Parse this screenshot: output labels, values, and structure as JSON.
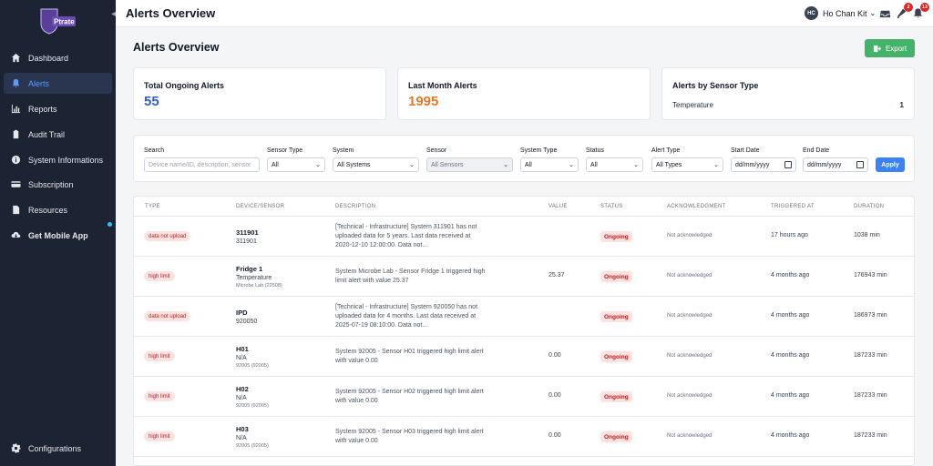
{
  "app": {
    "title": "Alerts Overview",
    "logo_text": "Ptrate"
  },
  "sidebar": {
    "items": [
      {
        "label": "Dashboard",
        "icon": "home-icon"
      },
      {
        "label": "Alerts",
        "icon": "bell-icon"
      },
      {
        "label": "Reports",
        "icon": "chart-icon"
      },
      {
        "label": "Audit Trail",
        "icon": "clipboard-icon"
      },
      {
        "label": "System Informations",
        "icon": "info-icon"
      },
      {
        "label": "Subscription",
        "icon": "card-icon"
      },
      {
        "label": "Resources",
        "icon": "file-icon"
      },
      {
        "label": "Get Mobile App",
        "icon": "cloud-download-icon"
      }
    ],
    "footer_item": {
      "label": "Configurations",
      "icon": "gear-icon"
    },
    "active": "Alerts"
  },
  "header": {
    "title": "Alerts Overview",
    "user": {
      "initials": "HC",
      "name": "Ho Chan Kit"
    },
    "notifications": {
      "messages_icon": "inbox-icon",
      "alerts_count": "2",
      "bell_count": "13"
    }
  },
  "page": {
    "title": "Alerts Overview",
    "export_label": "Export"
  },
  "cards": {
    "total": {
      "label": "Total Ongoing Alerts",
      "value": "55",
      "color": "#2f5fd0"
    },
    "last_month": {
      "label": "Last Month Alerts",
      "value": "1995",
      "color": "#e07a2e"
    },
    "by_sensor": {
      "label": "Alerts by Sensor Type",
      "rows": [
        {
          "name": "Temperature",
          "count": "1"
        }
      ]
    }
  },
  "filters": {
    "search": {
      "label": "Search",
      "placeholder": "Device name/ID, description, sensor"
    },
    "sensor_type": {
      "label": "Sensor Type",
      "value": "All"
    },
    "system": {
      "label": "System",
      "value": "All Systems"
    },
    "sensor": {
      "label": "Sensor",
      "value": "All Sensors"
    },
    "system_type": {
      "label": "System Type",
      "value": "All"
    },
    "status": {
      "label": "Status",
      "value": "All"
    },
    "alert_type": {
      "label": "Alert Type",
      "value": "All Types"
    },
    "start_date": {
      "label": "Start Date",
      "value": "dd/mm/yyyy"
    },
    "end_date": {
      "label": "End Date",
      "value": "dd/mm/yyyy"
    },
    "apply_label": "Apply"
  },
  "table": {
    "columns": [
      "TYPE",
      "DEVICE/SENSOR",
      "DESCRIPTION",
      "VALUE",
      "STATUS",
      "ACKNOWLEDGMENT",
      "TRIGGERED AT",
      "DURATION"
    ],
    "rows": [
      {
        "type": "data not upload",
        "device": "311901",
        "sub": "311901",
        "sub2": "",
        "description": "[Technical - Infrastructure] System 311901 has not uploaded data for 5 years. Last data received at 2020-12-10 12:00:00. Data not...",
        "value": "",
        "status": "Ongoing",
        "ack": "Not acknowledged",
        "triggered": "17 hours ago",
        "duration": "1038 min"
      },
      {
        "type": "high limit",
        "device": "Fridge 1",
        "sub": "Temperature",
        "sub2": "Microbe Lab (22508)",
        "description": "System Microbe Lab - Sensor Fridge 1 triggered high limit alert with value 25.37",
        "value": "25.37",
        "status": "Ongoing",
        "ack": "Not acknowledged",
        "triggered": "4 months ago",
        "duration": "176943 min"
      },
      {
        "type": "data not upload",
        "device": "IPD",
        "sub": "920050",
        "sub2": "",
        "description": "[Technical - Infrastructure] System 920050 has not uploaded data for 4 months. Last data received at 2025-07-19 08:10:00. Data not...",
        "value": "",
        "status": "Ongoing",
        "ack": "Not acknowledged",
        "triggered": "4 months ago",
        "duration": "186973 min"
      },
      {
        "type": "high limit",
        "device": "H01",
        "sub": "N/A",
        "sub2": "92005 (92005)",
        "description": "System 92005 - Sensor H01 triggered high limit alert with value 0.00",
        "value": "0.00",
        "status": "Ongoing",
        "ack": "Not acknowledged",
        "triggered": "4 months ago",
        "duration": "187233 min"
      },
      {
        "type": "high limit",
        "device": "H02",
        "sub": "N/A",
        "sub2": "92005 (92005)",
        "description": "System 92005 - Sensor H02 triggered high limit alert with value 0.00",
        "value": "0.00",
        "status": "Ongoing",
        "ack": "Not acknowledged",
        "triggered": "4 months ago",
        "duration": "187233 min"
      },
      {
        "type": "high limit",
        "device": "H03",
        "sub": "N/A",
        "sub2": "92005 (92005)",
        "description": "System 92005 - Sensor H03 triggered high limit alert with value 0.00",
        "value": "0.00",
        "status": "Ongoing",
        "ack": "Not acknowledged",
        "triggered": "4 months ago",
        "duration": "187233 min"
      }
    ]
  }
}
